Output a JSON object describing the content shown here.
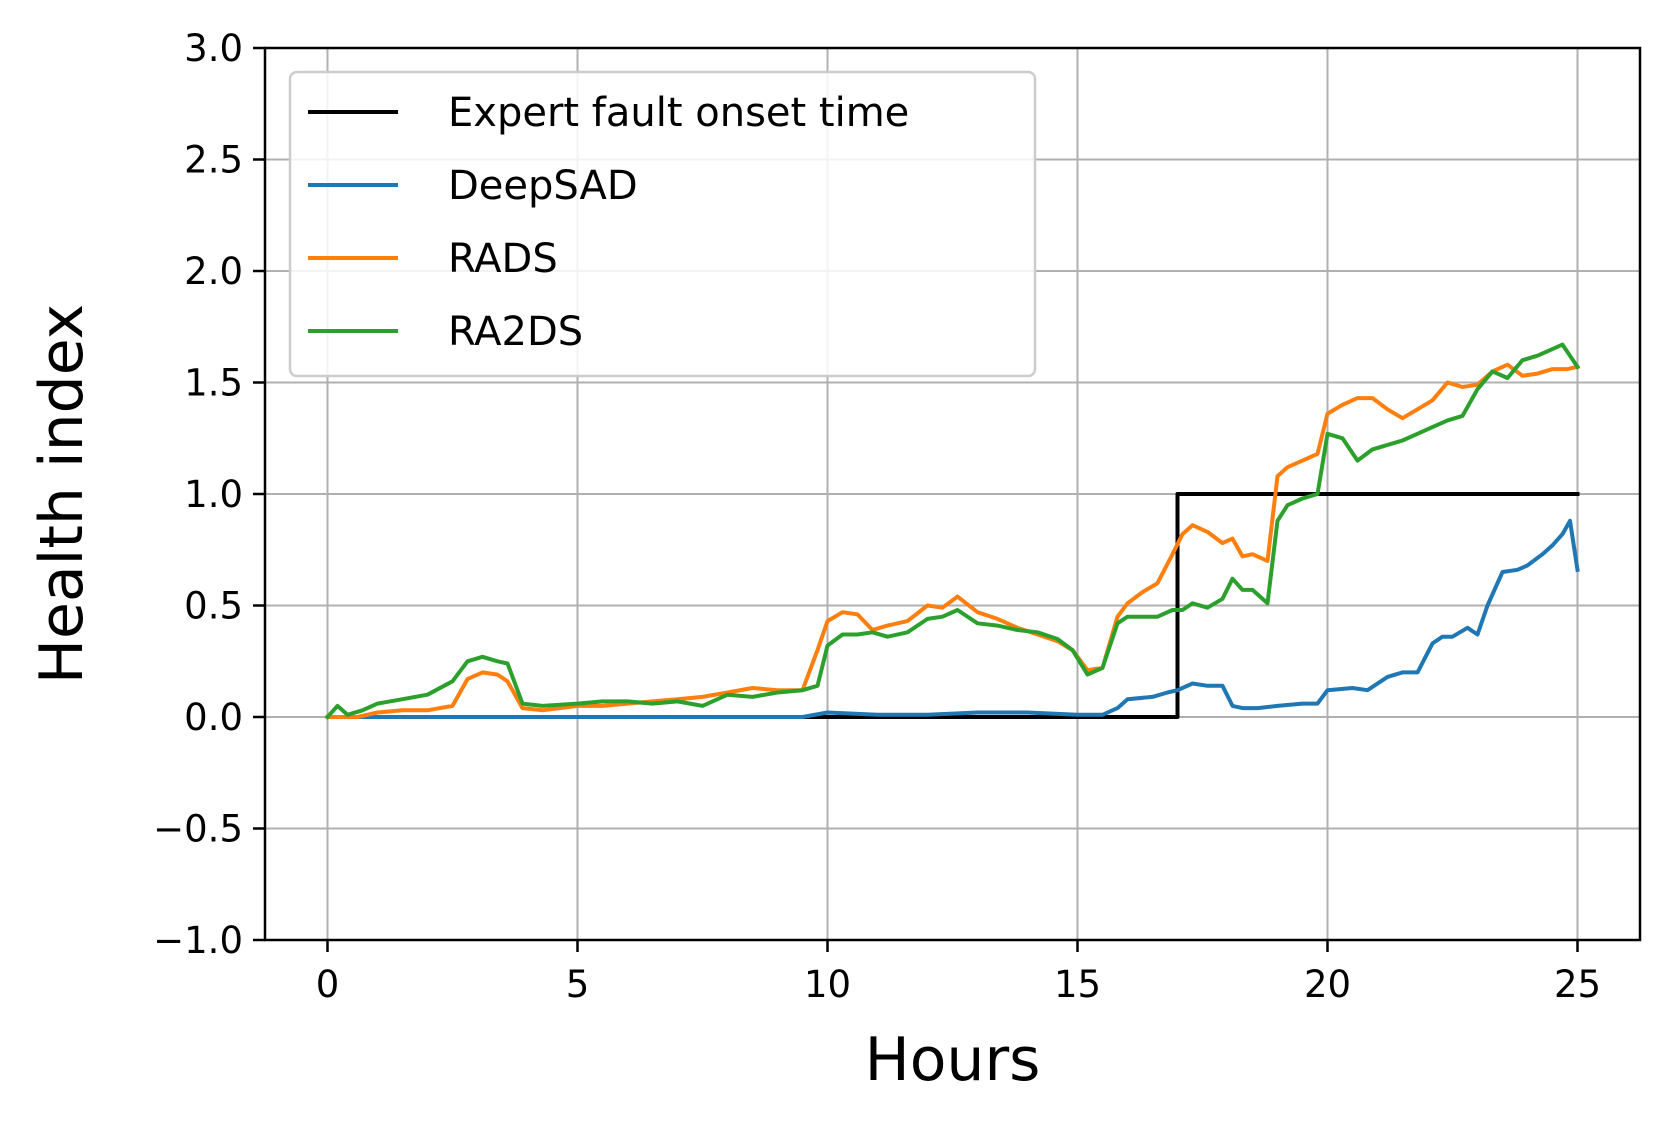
{
  "chart_data": {
    "type": "line",
    "xlabel": "Hours",
    "ylabel": "Health index",
    "xlim": [
      -1.25,
      26.25
    ],
    "ylim": [
      -1.0,
      3.0
    ],
    "xticks": [
      0,
      5,
      10,
      15,
      20,
      25
    ],
    "yticks": [
      -1.0,
      -0.5,
      0.0,
      0.5,
      1.0,
      1.5,
      2.0,
      2.5,
      3.0
    ],
    "xtick_labels": [
      "0",
      "5",
      "10",
      "15",
      "20",
      "25"
    ],
    "ytick_labels": [
      "−1.0",
      "−0.5",
      "0.0",
      "0.5",
      "1.0",
      "1.5",
      "2.0",
      "2.5",
      "3.0"
    ],
    "grid": true,
    "legend_position": "top-left",
    "series": [
      {
        "name": "Expert fault onset time",
        "color": "#000000",
        "x": [
          0,
          17,
          17,
          25
        ],
        "y": [
          0,
          0,
          1,
          1
        ]
      },
      {
        "name": "DeepSAD",
        "color": "#1f77b4",
        "x": [
          0,
          2,
          4,
          6,
          8,
          9.5,
          10,
          11,
          12,
          13,
          14,
          15,
          15.5,
          15.8,
          16,
          16.5,
          16.8,
          17,
          17.3,
          17.6,
          17.9,
          18.1,
          18.3,
          18.6,
          19,
          19.5,
          19.8,
          20,
          20.5,
          20.8,
          21.2,
          21.5,
          21.8,
          22.1,
          22.3,
          22.5,
          22.8,
          23,
          23.2,
          23.5,
          23.8,
          24,
          24.3,
          24.5,
          24.7,
          24.85,
          25
        ],
        "y": [
          0,
          0,
          0,
          0,
          0,
          0,
          0.02,
          0.01,
          0.01,
          0.02,
          0.02,
          0.01,
          0.01,
          0.04,
          0.08,
          0.09,
          0.11,
          0.12,
          0.15,
          0.14,
          0.14,
          0.05,
          0.04,
          0.04,
          0.05,
          0.06,
          0.06,
          0.12,
          0.13,
          0.12,
          0.18,
          0.2,
          0.2,
          0.33,
          0.36,
          0.36,
          0.4,
          0.37,
          0.5,
          0.65,
          0.66,
          0.68,
          0.73,
          0.77,
          0.82,
          0.88,
          0.66
        ]
      },
      {
        "name": "RADS",
        "color": "#ff7f0e",
        "x": [
          0,
          0.3,
          0.6,
          1,
          1.5,
          2,
          2.5,
          2.8,
          3.1,
          3.4,
          3.6,
          3.9,
          4.3,
          5,
          5.5,
          6,
          6.5,
          7,
          7.5,
          8,
          8.5,
          9,
          9.5,
          9.8,
          10,
          10.3,
          10.6,
          10.9,
          11.2,
          11.6,
          12,
          12.3,
          12.6,
          13,
          13.4,
          13.8,
          14.2,
          14.6,
          14.9,
          15.2,
          15.5,
          15.8,
          16,
          16.3,
          16.6,
          16.9,
          17.1,
          17.3,
          17.6,
          17.9,
          18.1,
          18.3,
          18.5,
          18.8,
          19,
          19.2,
          19.5,
          19.8,
          20,
          20.3,
          20.6,
          20.9,
          21.2,
          21.5,
          21.8,
          22.1,
          22.4,
          22.7,
          23,
          23.3,
          23.6,
          23.9,
          24.2,
          24.5,
          24.8,
          25
        ],
        "y": [
          0,
          0,
          0,
          0.02,
          0.03,
          0.03,
          0.05,
          0.17,
          0.2,
          0.19,
          0.16,
          0.04,
          0.03,
          0.05,
          0.05,
          0.06,
          0.07,
          0.08,
          0.09,
          0.11,
          0.13,
          0.12,
          0.12,
          0.3,
          0.43,
          0.47,
          0.46,
          0.39,
          0.41,
          0.43,
          0.5,
          0.49,
          0.54,
          0.47,
          0.44,
          0.4,
          0.37,
          0.34,
          0.3,
          0.21,
          0.22,
          0.45,
          0.51,
          0.56,
          0.6,
          0.73,
          0.82,
          0.86,
          0.83,
          0.78,
          0.8,
          0.72,
          0.73,
          0.7,
          1.08,
          1.12,
          1.15,
          1.18,
          1.36,
          1.4,
          1.43,
          1.43,
          1.38,
          1.34,
          1.38,
          1.42,
          1.5,
          1.48,
          1.49,
          1.55,
          1.58,
          1.53,
          1.54,
          1.56,
          1.56,
          1.57
        ]
      },
      {
        "name": "RA2DS",
        "color": "#2ca02c",
        "x": [
          0,
          0.2,
          0.4,
          0.7,
          1,
          1.5,
          2,
          2.5,
          2.8,
          3.1,
          3.4,
          3.6,
          3.9,
          4.3,
          5,
          5.5,
          6,
          6.5,
          7,
          7.5,
          8,
          8.5,
          9,
          9.5,
          9.8,
          10,
          10.3,
          10.6,
          10.9,
          11.2,
          11.6,
          12,
          12.3,
          12.6,
          13,
          13.4,
          13.8,
          14.2,
          14.6,
          14.9,
          15.2,
          15.5,
          15.8,
          16,
          16.3,
          16.6,
          16.9,
          17.1,
          17.3,
          17.6,
          17.9,
          18.1,
          18.3,
          18.5,
          18.8,
          19,
          19.2,
          19.5,
          19.8,
          20,
          20.3,
          20.6,
          20.9,
          21.2,
          21.5,
          21.8,
          22.1,
          22.4,
          22.7,
          23,
          23.3,
          23.6,
          23.9,
          24.2,
          24.5,
          24.7,
          25
        ],
        "y": [
          0,
          0.05,
          0.01,
          0.03,
          0.06,
          0.08,
          0.1,
          0.16,
          0.25,
          0.27,
          0.25,
          0.24,
          0.06,
          0.05,
          0.06,
          0.07,
          0.07,
          0.06,
          0.07,
          0.05,
          0.1,
          0.09,
          0.11,
          0.12,
          0.14,
          0.32,
          0.37,
          0.37,
          0.38,
          0.36,
          0.38,
          0.44,
          0.45,
          0.48,
          0.42,
          0.41,
          0.39,
          0.38,
          0.35,
          0.3,
          0.19,
          0.22,
          0.42,
          0.45,
          0.45,
          0.45,
          0.48,
          0.48,
          0.51,
          0.49,
          0.53,
          0.62,
          0.57,
          0.57,
          0.51,
          0.88,
          0.95,
          0.98,
          1.0,
          1.27,
          1.25,
          1.15,
          1.2,
          1.22,
          1.24,
          1.27,
          1.3,
          1.33,
          1.35,
          1.47,
          1.55,
          1.52,
          1.6,
          1.62,
          1.65,
          1.67,
          1.57
        ]
      }
    ]
  }
}
